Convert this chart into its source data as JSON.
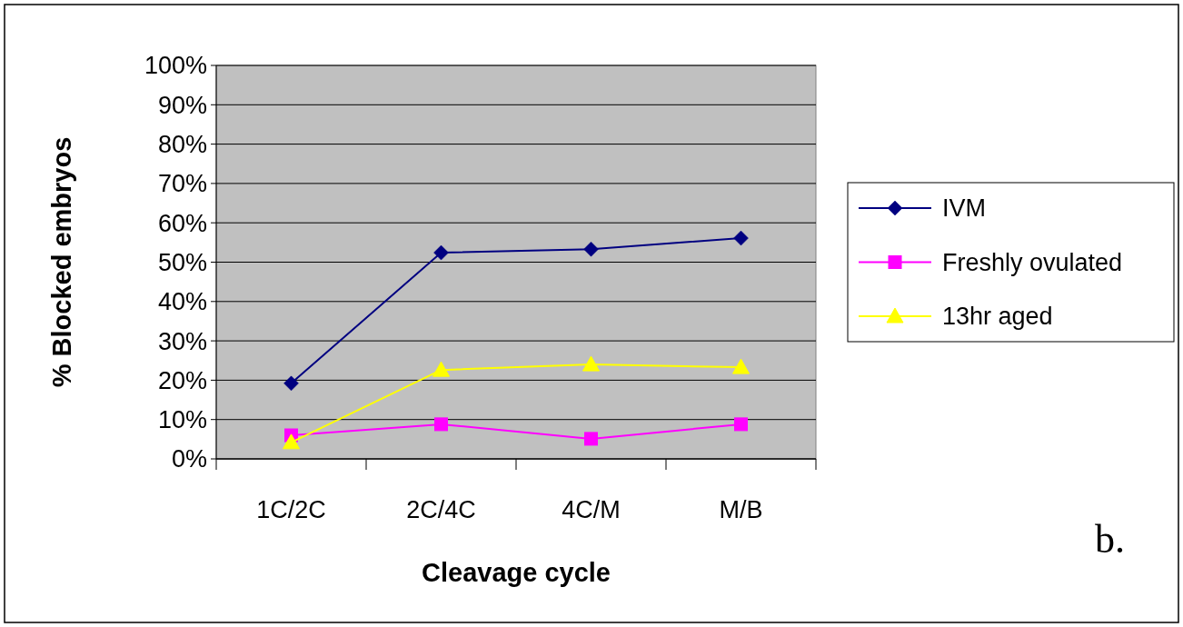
{
  "chart_data": {
    "type": "line",
    "xlabel": "Cleavage cycle",
    "ylabel": "% Blocked embryos",
    "categories": [
      "1C/2C",
      "2C/4C",
      "4C/M",
      "M/B"
    ],
    "series": [
      {
        "name": "IVM",
        "color": "#000080",
        "marker": "diamond",
        "values": [
          19.2,
          52.4,
          53.3,
          56.1
        ]
      },
      {
        "name": "Freshly ovulated",
        "color": "#ff00ff",
        "marker": "square",
        "values": [
          6.0,
          8.8,
          5.1,
          8.8
        ]
      },
      {
        "name": "13hr aged",
        "color": "#ffff00",
        "marker": "triangle",
        "values": [
          4.2,
          22.6,
          24.0,
          23.3
        ]
      }
    ],
    "ylim": [
      0,
      100
    ],
    "yticks": [
      {
        "value": 0,
        "label": "0%"
      },
      {
        "value": 10,
        "label": "10%"
      },
      {
        "value": 20,
        "label": "20%"
      },
      {
        "value": 30,
        "label": "30%"
      },
      {
        "value": 40,
        "label": "40%"
      },
      {
        "value": 50,
        "label": "50%"
      },
      {
        "value": 60,
        "label": "60%"
      },
      {
        "value": 70,
        "label": "70%"
      },
      {
        "value": 80,
        "label": "80%"
      },
      {
        "value": 90,
        "label": "90%"
      },
      {
        "value": 100,
        "label": "100%"
      }
    ],
    "grid": "y",
    "legend": "right",
    "line_style": "solid",
    "annotations": [
      "b."
    ]
  }
}
